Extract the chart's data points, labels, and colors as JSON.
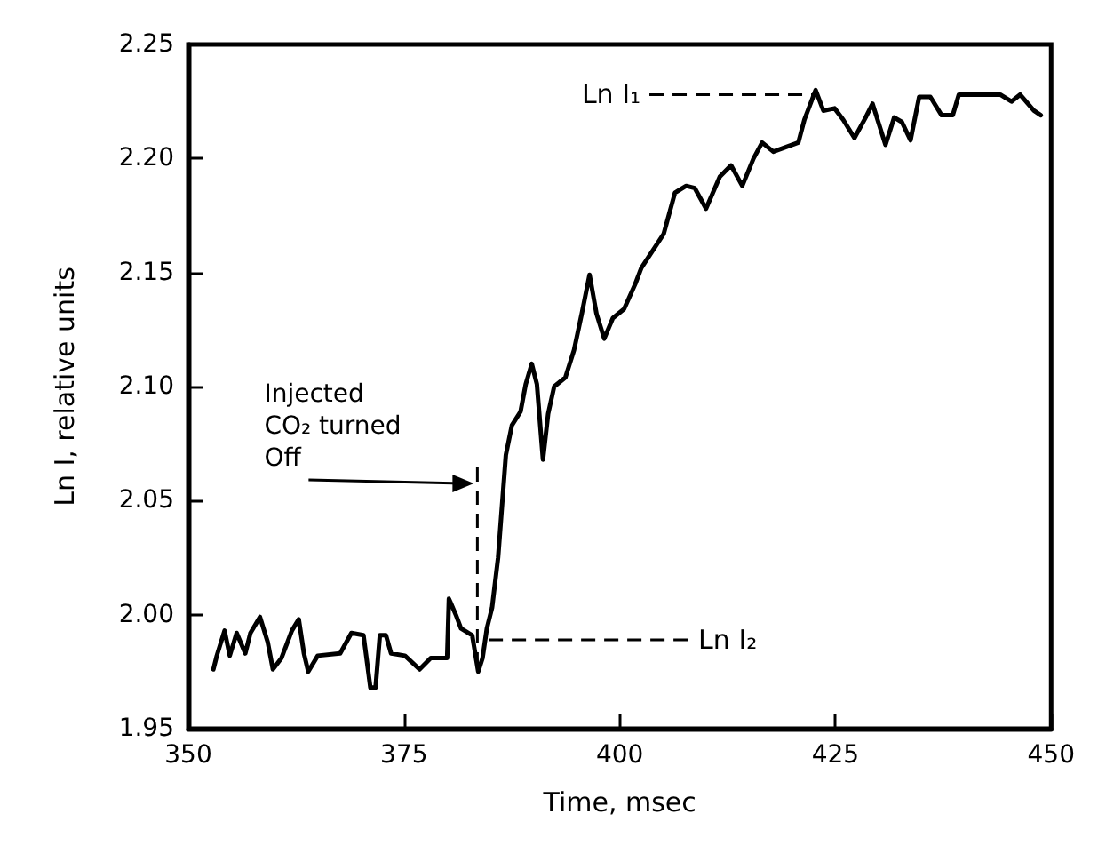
{
  "chart_data": {
    "type": "line",
    "xlabel": "Time, msec",
    "ylabel": "Ln I, relative units",
    "xlim": [
      350,
      450
    ],
    "ylim": [
      1.95,
      2.25
    ],
    "xticks": [
      350,
      375,
      400,
      425,
      450
    ],
    "yticks": [
      {
        "value": 1.95,
        "label": "1.95"
      },
      {
        "value": 2,
        "label": "2.00"
      },
      {
        "value": 2.05,
        "label": "2.05"
      },
      {
        "value": 2.1,
        "label": "2.10"
      },
      {
        "value": 2.15,
        "label": "2.15"
      },
      {
        "value": 2.2,
        "label": "2.20"
      },
      {
        "value": 2.25,
        "label": "2.25"
      }
    ],
    "grid": false,
    "marker": "none",
    "line_style": "solid",
    "series": [
      {
        "color": "#000000",
        "x": [
          352.9,
          353.3,
          354.2,
          354.8,
          355.6,
          356.6,
          357.2,
          358.3,
          359.2,
          359.8,
          360.8,
          362.0,
          362.8,
          363.4,
          363.9,
          365.0,
          367.6,
          368.9,
          370.3,
          371.1,
          371.7,
          372.2,
          372.9,
          373.5,
          375.1,
          376.8,
          378.1,
          380.0,
          380.2,
          381.0,
          381.6,
          382.9,
          383.6,
          384.1,
          384.6,
          385.2,
          385.9,
          386.5,
          386.8,
          387.5,
          388.5,
          389.1,
          389.8,
          390.4,
          391.1,
          391.7,
          392.4,
          393.7,
          394.7,
          395.6,
          396.5,
          397.3,
          398.2,
          399.2,
          400.5,
          401.8,
          402.5,
          405.1,
          406.4,
          407.7,
          408.7,
          410.0,
          411.6,
          412.9,
          414.2,
          415.5,
          416.5,
          417.8,
          420.7,
          421.4,
          422.7,
          423.6,
          424.9,
          425.9,
          427.2,
          428.5,
          429.3,
          430.8,
          431.8,
          432.7,
          433.7,
          434.7,
          436.0,
          437.3,
          438.6,
          439.3,
          444.1,
          445.4,
          446.4,
          448.0,
          448.8
        ],
        "values": [
          1.976,
          1.982,
          1.993,
          1.982,
          1.992,
          1.983,
          1.992,
          1.999,
          1.988,
          1.976,
          1.981,
          1.993,
          1.998,
          1.983,
          1.975,
          1.982,
          1.983,
          1.992,
          1.991,
          1.968,
          1.968,
          1.991,
          1.991,
          1.983,
          1.982,
          1.976,
          1.981,
          1.981,
          2.007,
          2.0,
          1.994,
          1.991,
          1.975,
          1.981,
          1.994,
          2.003,
          2.025,
          2.055,
          2.07,
          2.083,
          2.089,
          2.101,
          2.11,
          2.101,
          2.068,
          2.088,
          2.1,
          2.104,
          2.116,
          2.132,
          2.149,
          2.132,
          2.121,
          2.13,
          2.134,
          2.145,
          2.152,
          2.167,
          2.185,
          2.188,
          2.187,
          2.178,
          2.192,
          2.197,
          2.188,
          2.2,
          2.207,
          2.203,
          2.207,
          2.217,
          2.23,
          2.221,
          2.222,
          2.217,
          2.209,
          2.218,
          2.224,
          2.206,
          2.218,
          2.216,
          2.208,
          2.227,
          2.227,
          2.219,
          2.219,
          2.228,
          2.228,
          2.225,
          2.228,
          2.221,
          2.219
        ]
      }
    ],
    "ref_lines": [
      {
        "axis": "x",
        "value": 383.5,
        "label": "Injected\nCO₂ turned\nOff",
        "line_style": "dashed"
      }
    ],
    "annotations": [
      {
        "text": "Ln I₁",
        "x": 423,
        "y": 2.228
      },
      {
        "text": "Ln I₂",
        "x": 384.4,
        "y": 1.989
      }
    ]
  }
}
